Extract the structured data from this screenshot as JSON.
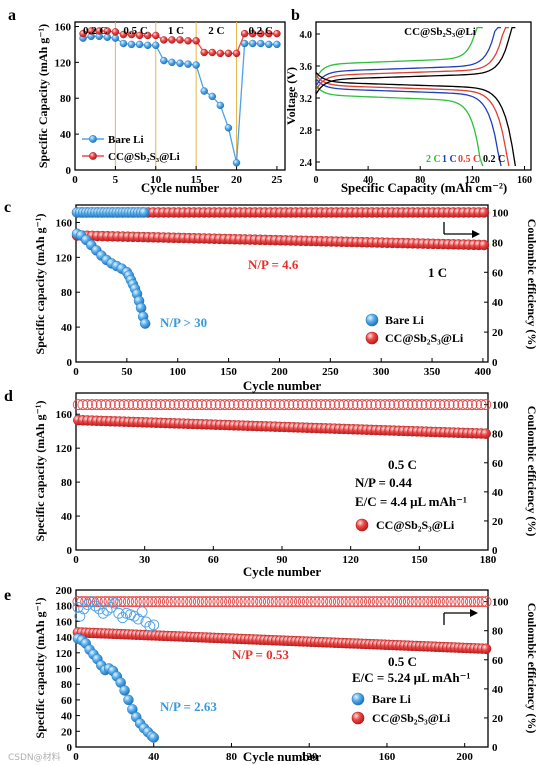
{
  "chart_data": [
    {
      "id": "a",
      "panel_label": "a",
      "type": "scatter",
      "xlabel": "Cycle number",
      "ylabel": "Specific Capacity (mAh g⁻¹)",
      "xlim": [
        0,
        26
      ],
      "ylim": [
        0,
        165
      ],
      "xticks": [
        0,
        5,
        10,
        15,
        20,
        25
      ],
      "yticks": [
        0,
        40,
        80,
        120,
        160
      ],
      "rate_labels": [
        "0.2 C",
        "0.5 C",
        "1 C",
        "2 C",
        "0.2 C"
      ],
      "rate_dividers": [
        5,
        10,
        15,
        20
      ],
      "legend_position": "lower-left",
      "series": [
        {
          "name": "Bare Li",
          "color": "#4ea3e6",
          "x": [
            1,
            2,
            3,
            4,
            5,
            6,
            7,
            8,
            9,
            10,
            11,
            12,
            13,
            14,
            15,
            16,
            17,
            18,
            19,
            20,
            21,
            22,
            23,
            24,
            25
          ],
          "y": [
            147,
            149,
            149,
            148,
            147,
            141,
            140,
            140,
            139,
            139,
            122,
            120,
            119,
            118,
            117,
            88,
            82,
            72,
            47,
            8,
            141,
            141,
            141,
            140,
            140
          ]
        },
        {
          "name": "CC@Sb₂S₃@Li",
          "color": "#e84a4a",
          "x": [
            1,
            2,
            3,
            4,
            5,
            6,
            7,
            8,
            9,
            10,
            11,
            12,
            13,
            14,
            15,
            16,
            17,
            18,
            19,
            20,
            21,
            22,
            23,
            24,
            25
          ],
          "y": [
            152,
            155,
            155,
            155,
            154,
            151,
            151,
            150,
            150,
            150,
            145,
            145,
            145,
            144,
            144,
            131,
            131,
            130,
            130,
            130,
            152,
            152,
            152,
            152,
            152
          ]
        }
      ]
    },
    {
      "id": "b",
      "panel_label": "b",
      "type": "line",
      "title": "CC@Sb₂S₃@Li",
      "xlabel": "Specific Capacity (mAh cm⁻²)",
      "ylabel": "Voltage (V)",
      "xlim": [
        0,
        165
      ],
      "ylim": [
        2.3,
        4.15
      ],
      "xticks": [
        0,
        40,
        80,
        120,
        160
      ],
      "yticks": [
        2.4,
        2.8,
        3.2,
        3.6,
        4.0
      ],
      "legend_position": "bottom",
      "series": [
        {
          "name": "2 C",
          "color": "#2fbf3a",
          "capacity": 128,
          "charge_plateau": 3.66,
          "discharge_plateau": 3.2
        },
        {
          "name": "1 C",
          "color": "#1f3fbf",
          "capacity": 142,
          "charge_plateau": 3.57,
          "discharge_plateau": 3.28
        },
        {
          "name": "0.5 C",
          "color": "#e04030",
          "capacity": 148,
          "charge_plateau": 3.52,
          "discharge_plateau": 3.32
        },
        {
          "name": "0.2 C",
          "color": "#000000",
          "capacity": 153,
          "charge_plateau": 3.47,
          "discharge_plateau": 3.36
        }
      ]
    },
    {
      "id": "c",
      "panel_label": "c",
      "type": "scatter",
      "xlabel": "Cycle number",
      "ylabel": "Specific capacity (mAh g⁻¹)",
      "ylabel_right": "Coulombic efficiency (%)",
      "xlim": [
        0,
        405
      ],
      "ylim": [
        0,
        180
      ],
      "ylim_right": [
        0,
        105
      ],
      "xticks": [
        0,
        50,
        100,
        150,
        200,
        250,
        300,
        350,
        400
      ],
      "yticks": [
        0,
        40,
        80,
        120,
        160
      ],
      "yticks_right": [
        0,
        20,
        40,
        60,
        80,
        100
      ],
      "annotations": [
        "N/P = 4.6",
        "1 C",
        "N/P > 30"
      ],
      "legend_position": "lower-right",
      "series": [
        {
          "name": "Bare Li",
          "color": "#4ea3e6",
          "axis": "left",
          "x": [
            1,
            5,
            10,
            15,
            20,
            25,
            30,
            35,
            40,
            45,
            50,
            52,
            54,
            56,
            58,
            60,
            62,
            64,
            66,
            68
          ],
          "y": [
            147,
            145,
            140,
            134,
            128,
            122,
            117,
            113,
            110,
            107,
            103,
            99,
            94,
            89,
            84,
            78,
            70,
            62,
            52,
            44
          ]
        },
        {
          "name": "Bare Li CE",
          "color": "#4ea3e6",
          "axis": "right",
          "x_range": [
            1,
            68
          ],
          "y_value": 100
        },
        {
          "name": "CC@Sb₂S₃@Li",
          "color": "#e84a4a",
          "axis": "left",
          "x_range": [
            1,
            405
          ],
          "y_start": 145,
          "y_end": 134
        },
        {
          "name": "CC@Sb₂S₃@Li CE",
          "color": "#e84a4a",
          "axis": "right",
          "x_range": [
            1,
            405
          ],
          "y_value": 100
        }
      ]
    },
    {
      "id": "d",
      "panel_label": "d",
      "type": "scatter",
      "xlabel": "Cycle number",
      "ylabel": "Specific capacity (mAh g⁻¹)",
      "ylabel_right": "Coulombic efficiency (%)",
      "xlim": [
        0,
        180
      ],
      "ylim": [
        0,
        185
      ],
      "ylim_right": [
        0,
        108
      ],
      "xticks": [
        0,
        30,
        60,
        90,
        120,
        150,
        180
      ],
      "yticks": [
        0,
        40,
        80,
        120,
        160
      ],
      "yticks_right": [
        0,
        20,
        40,
        60,
        80,
        100
      ],
      "annotations": [
        "0.5 C",
        "N/P = 0.44",
        "E/C = 4.4 μL mAh⁻¹"
      ],
      "legend_position": "lower-right",
      "series": [
        {
          "name": "CC@Sb₂S₃@Li",
          "color": "#e84a4a",
          "axis": "left",
          "x_range": [
            1,
            180
          ],
          "y_start": 153,
          "y_end": 137
        },
        {
          "name": "CC@Sb₂S₃@Li CE",
          "color": "#e84a4a",
          "axis": "right",
          "x_range": [
            1,
            180
          ],
          "y_value": 100
        }
      ]
    },
    {
      "id": "e",
      "panel_label": "e",
      "type": "scatter",
      "xlabel": "Cycle number",
      "ylabel": "Specific capacity (mAh g⁻¹)",
      "ylabel_right": "Coulombic efficiency (%)",
      "xlim": [
        0,
        212
      ],
      "ylim": [
        0,
        200
      ],
      "ylim_right": [
        0,
        108
      ],
      "xticks": [
        0,
        40,
        80,
        120,
        160,
        200
      ],
      "yticks": [
        0,
        20,
        40,
        60,
        80,
        100,
        120,
        140,
        160,
        180,
        200
      ],
      "yticks_right": [
        0,
        20,
        40,
        60,
        80,
        100
      ],
      "annotations": [
        "N/P = 0.53",
        "0.5 C",
        "E/C = 5.24 μL mAh⁻¹",
        "N/P = 2.63"
      ],
      "legend_position": "lower-right",
      "series": [
        {
          "name": "Bare Li",
          "color": "#4ea3e6",
          "axis": "left",
          "x": [
            1,
            3,
            5,
            7,
            9,
            11,
            13,
            15,
            17,
            19,
            21,
            23,
            25,
            27,
            29,
            31,
            33,
            35,
            37,
            39,
            40
          ],
          "y": [
            138,
            136,
            132,
            124,
            118,
            112,
            104,
            98,
            100,
            97,
            90,
            82,
            72,
            60,
            48,
            38,
            30,
            24,
            19,
            14,
            12
          ]
        },
        {
          "name": "Bare Li CE",
          "color": "#4ea3e6",
          "axis": "right",
          "x": [
            1,
            2,
            4,
            6,
            8,
            10,
            12,
            14,
            16,
            18,
            20,
            22,
            24,
            26,
            28,
            30,
            32,
            34,
            36,
            38,
            40
          ],
          "y": [
            96,
            90,
            95,
            98,
            100,
            97,
            95,
            92,
            94,
            96,
            99,
            92,
            89,
            92,
            91,
            90,
            88,
            93,
            86,
            83,
            84
          ]
        },
        {
          "name": "CC@Sb₂S₃@Li",
          "color": "#e84a4a",
          "axis": "left",
          "x_range": [
            1,
            212
          ],
          "y_start": 146,
          "y_end": 125
        },
        {
          "name": "CC@Sb₂S₃@Li CE",
          "color": "#e84a4a",
          "axis": "right",
          "x_range": [
            1,
            212
          ],
          "y_value": 100
        }
      ]
    }
  ],
  "watermark": "CSDN@材料"
}
